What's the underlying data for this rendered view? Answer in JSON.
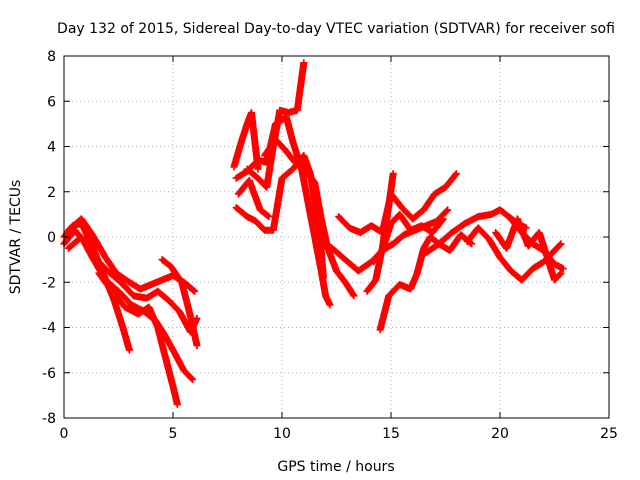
{
  "chart_data": {
    "type": "scatter",
    "title": "Day 132 of 2015, Sidereal Day-to-day VTEC variation (SDTVAR) for receiver sofi",
    "xlabel": "GPS time / hours",
    "ylabel": "SDTVAR / TECUs",
    "xlim": [
      0,
      25
    ],
    "ylim": [
      -8,
      8
    ],
    "xticks": [
      "0",
      "5",
      "10",
      "15",
      "20",
      "25"
    ],
    "yticks": [
      "-8",
      "-6",
      "-4",
      "-2",
      "0",
      "2",
      "4",
      "6",
      "8"
    ],
    "grid": true,
    "marker": "+",
    "color": "#ff0000",
    "series": [
      {
        "x": [
          0.0,
          0.4,
          0.8,
          1.3,
          1.8,
          2.3,
          2.7,
          3.0
        ],
        "y": [
          0.0,
          0.5,
          0.6,
          -0.4,
          -1.6,
          -2.8,
          -4.0,
          -5.0
        ]
      },
      {
        "x": [
          0.2,
          0.8,
          1.3,
          1.9,
          2.4,
          3.0,
          3.5,
          4.0,
          4.5,
          5.0,
          5.5,
          6.0
        ],
        "y": [
          0.3,
          0.8,
          0.1,
          -0.9,
          -1.6,
          -2.0,
          -2.3,
          -2.1,
          -1.9,
          -1.7,
          -2.0,
          -2.4
        ]
      },
      {
        "x": [
          0.0,
          0.5,
          1.0,
          1.5,
          2.0,
          2.6,
          3.2,
          3.8,
          4.3,
          4.8,
          5.3,
          5.8,
          6.1
        ],
        "y": [
          -0.3,
          0.3,
          -0.3,
          -1.0,
          -1.5,
          -2.0,
          -2.6,
          -2.7,
          -2.4,
          -2.8,
          -3.3,
          -4.2,
          -3.6
        ]
      },
      {
        "x": [
          0.2,
          0.8,
          1.3,
          1.9,
          2.5,
          3.1,
          3.7,
          4.2,
          4.6,
          5.0,
          5.5,
          5.9
        ],
        "y": [
          -0.5,
          0.0,
          -0.9,
          -1.9,
          -2.4,
          -3.0,
          -3.3,
          -3.7,
          -4.3,
          -5.0,
          -5.9,
          -6.3
        ]
      },
      {
        "x": [
          1.6,
          2.2,
          2.8,
          3.4,
          3.9,
          4.3,
          4.7,
          5.0,
          5.2
        ],
        "y": [
          -1.6,
          -2.4,
          -3.1,
          -3.4,
          -3.1,
          -4.0,
          -5.5,
          -6.6,
          -7.4
        ]
      },
      {
        "x": [
          4.5,
          4.9,
          5.4,
          5.8,
          6.1
        ],
        "y": [
          -1.0,
          -1.3,
          -2.0,
          -3.5,
          -4.8
        ]
      },
      {
        "x": [
          7.8,
          8.1,
          8.4,
          8.6,
          8.9
        ],
        "y": [
          3.1,
          4.1,
          5.0,
          5.5,
          3.0
        ]
      },
      {
        "x": [
          7.9,
          8.4,
          8.9,
          9.3,
          9.7,
          10.2,
          10.5,
          10.9,
          11.2,
          11.5,
          11.8,
          12.0,
          12.2
        ],
        "y": [
          2.6,
          2.9,
          3.4,
          3.3,
          5.0,
          5.3,
          4.2,
          3.0,
          1.5,
          0.0,
          -1.5,
          -2.6,
          -3.0
        ]
      },
      {
        "x": [
          7.9,
          8.4,
          8.8,
          9.2,
          9.6,
          10.0,
          10.5,
          11.0,
          11.3,
          11.6,
          11.8,
          11.9
        ],
        "y": [
          1.3,
          0.9,
          0.7,
          0.3,
          0.3,
          2.6,
          3.0,
          3.6,
          2.8,
          1.0,
          -0.6,
          -1.8
        ]
      },
      {
        "x": [
          8.0,
          8.5,
          9.0,
          9.4
        ],
        "y": [
          1.9,
          2.5,
          1.2,
          0.9
        ]
      },
      {
        "x": [
          8.4,
          8.9,
          9.3,
          9.6,
          9.9,
          10.3,
          10.7,
          11.0
        ],
        "y": [
          3.0,
          2.6,
          2.2,
          4.0,
          5.6,
          5.5,
          5.6,
          7.7
        ]
      },
      {
        "x": [
          9.2,
          9.7,
          10.1,
          10.6,
          11.1,
          11.5,
          11.8,
          12.1,
          12.5,
          12.9,
          13.3
        ],
        "y": [
          3.6,
          4.3,
          3.9,
          3.3,
          2.9,
          2.4,
          0.8,
          -0.5,
          -1.5,
          -2.0,
          -2.6
        ]
      },
      {
        "x": [
          12.6,
          13.1,
          13.6,
          14.1,
          14.6,
          15.0,
          15.5,
          16.0,
          16.5,
          17.0,
          17.5,
          18.0
        ],
        "y": [
          0.9,
          0.4,
          0.2,
          0.5,
          0.2,
          1.9,
          1.3,
          0.8,
          1.2,
          1.9,
          2.2,
          2.8
        ]
      },
      {
        "x": [
          11.7,
          12.3,
          12.9,
          13.5,
          14.1,
          14.6,
          15.1,
          15.6,
          16.1,
          16.6,
          17.1,
          17.6
        ],
        "y": [
          -0.1,
          -0.5,
          -1.0,
          -1.5,
          -1.1,
          -0.6,
          -0.3,
          0.1,
          0.3,
          0.5,
          0.7,
          1.2
        ]
      },
      {
        "x": [
          14.2,
          14.6,
          15.0,
          15.4,
          15.9,
          16.4,
          16.9,
          17.4
        ],
        "y": [
          -1.1,
          -0.6,
          0.6,
          1.0,
          0.3,
          0.5,
          0.2,
          0.8
        ]
      },
      {
        "x": [
          13.9,
          14.3,
          14.6,
          14.9,
          15.1
        ],
        "y": [
          -2.4,
          -1.9,
          -0.5,
          1.4,
          2.8
        ]
      },
      {
        "x": [
          14.5,
          14.9,
          15.4,
          15.9,
          16.2,
          16.5,
          16.8,
          17.2,
          17.7,
          18.2,
          18.7
        ],
        "y": [
          -4.1,
          -2.6,
          -2.1,
          -2.3,
          -1.6,
          -0.5,
          0.0,
          -0.3,
          -0.6,
          0.1,
          -0.3
        ]
      },
      {
        "x": [
          16.6,
          17.2,
          17.8,
          18.4,
          19.0,
          19.6,
          20.0,
          20.4,
          20.8,
          21.2
        ],
        "y": [
          -0.7,
          -0.3,
          0.2,
          0.6,
          0.9,
          1.0,
          1.2,
          0.9,
          0.6,
          0.4
        ]
      },
      {
        "x": [
          18.5,
          19.0,
          19.5,
          20.0,
          20.5,
          21.0,
          21.5,
          22.0,
          22.4,
          22.8
        ],
        "y": [
          -0.2,
          0.4,
          -0.1,
          -0.9,
          -1.5,
          -1.9,
          -1.4,
          -1.1,
          -0.7,
          -0.3
        ]
      },
      {
        "x": [
          19.8,
          20.3,
          20.8,
          21.3,
          21.8,
          22.2,
          22.5,
          22.8
        ],
        "y": [
          0.2,
          -0.5,
          0.8,
          -0.4,
          0.2,
          -1.0,
          -1.9,
          -1.6
        ]
      },
      {
        "x": [
          20.5,
          21.0,
          21.5,
          22.0,
          22.5,
          22.9
        ],
        "y": [
          0.8,
          0.2,
          -0.3,
          -0.6,
          -1.2,
          -1.4
        ]
      }
    ]
  }
}
